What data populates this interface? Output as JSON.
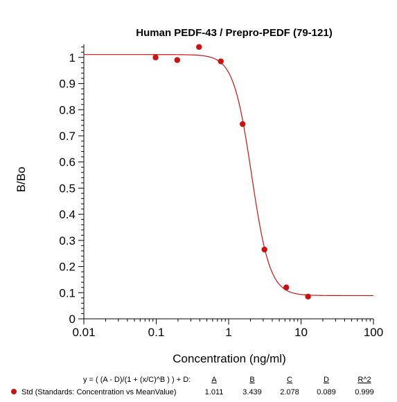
{
  "chart_data": {
    "type": "scatter",
    "title": "Human PEDF-43 / Prepro-PEDF (79-121)",
    "xlabel": "Concentration (ng/ml)",
    "ylabel": "B/Bo",
    "x_scale": "log",
    "xlim": [
      0.01,
      100
    ],
    "ylim": [
      0,
      1.05
    ],
    "x_ticks": [
      "0.01",
      "0.1",
      "1",
      "10",
      "100"
    ],
    "y_ticks": [
      "0",
      "0.1",
      "0.2",
      "0.3",
      "0.4",
      "0.5",
      "0.6",
      "0.7",
      "0.8",
      "0.9",
      "1"
    ],
    "series": [
      {
        "name": "Std (Standards: Concentration vs MeanValue)",
        "color": "#cc1111",
        "x": [
          0.098,
          0.195,
          0.39,
          0.78,
          1.56,
          3.125,
          6.25,
          12.5
        ],
        "y": [
          1.0,
          0.99,
          1.04,
          0.985,
          0.745,
          0.265,
          0.12,
          0.085
        ]
      }
    ],
    "fit": {
      "equation": "y = ( (A - D)/(1 + (x/C)^B ) ) + D:",
      "params": [
        {
          "name": "A",
          "value": "1.011"
        },
        {
          "name": "B",
          "value": "3.439"
        },
        {
          "name": "C",
          "value": "2.078"
        },
        {
          "name": "D",
          "value": "0.089"
        },
        {
          "name": "R^2",
          "value": "0.999"
        }
      ],
      "curve_color": "#cc1111"
    },
    "grid": false
  }
}
